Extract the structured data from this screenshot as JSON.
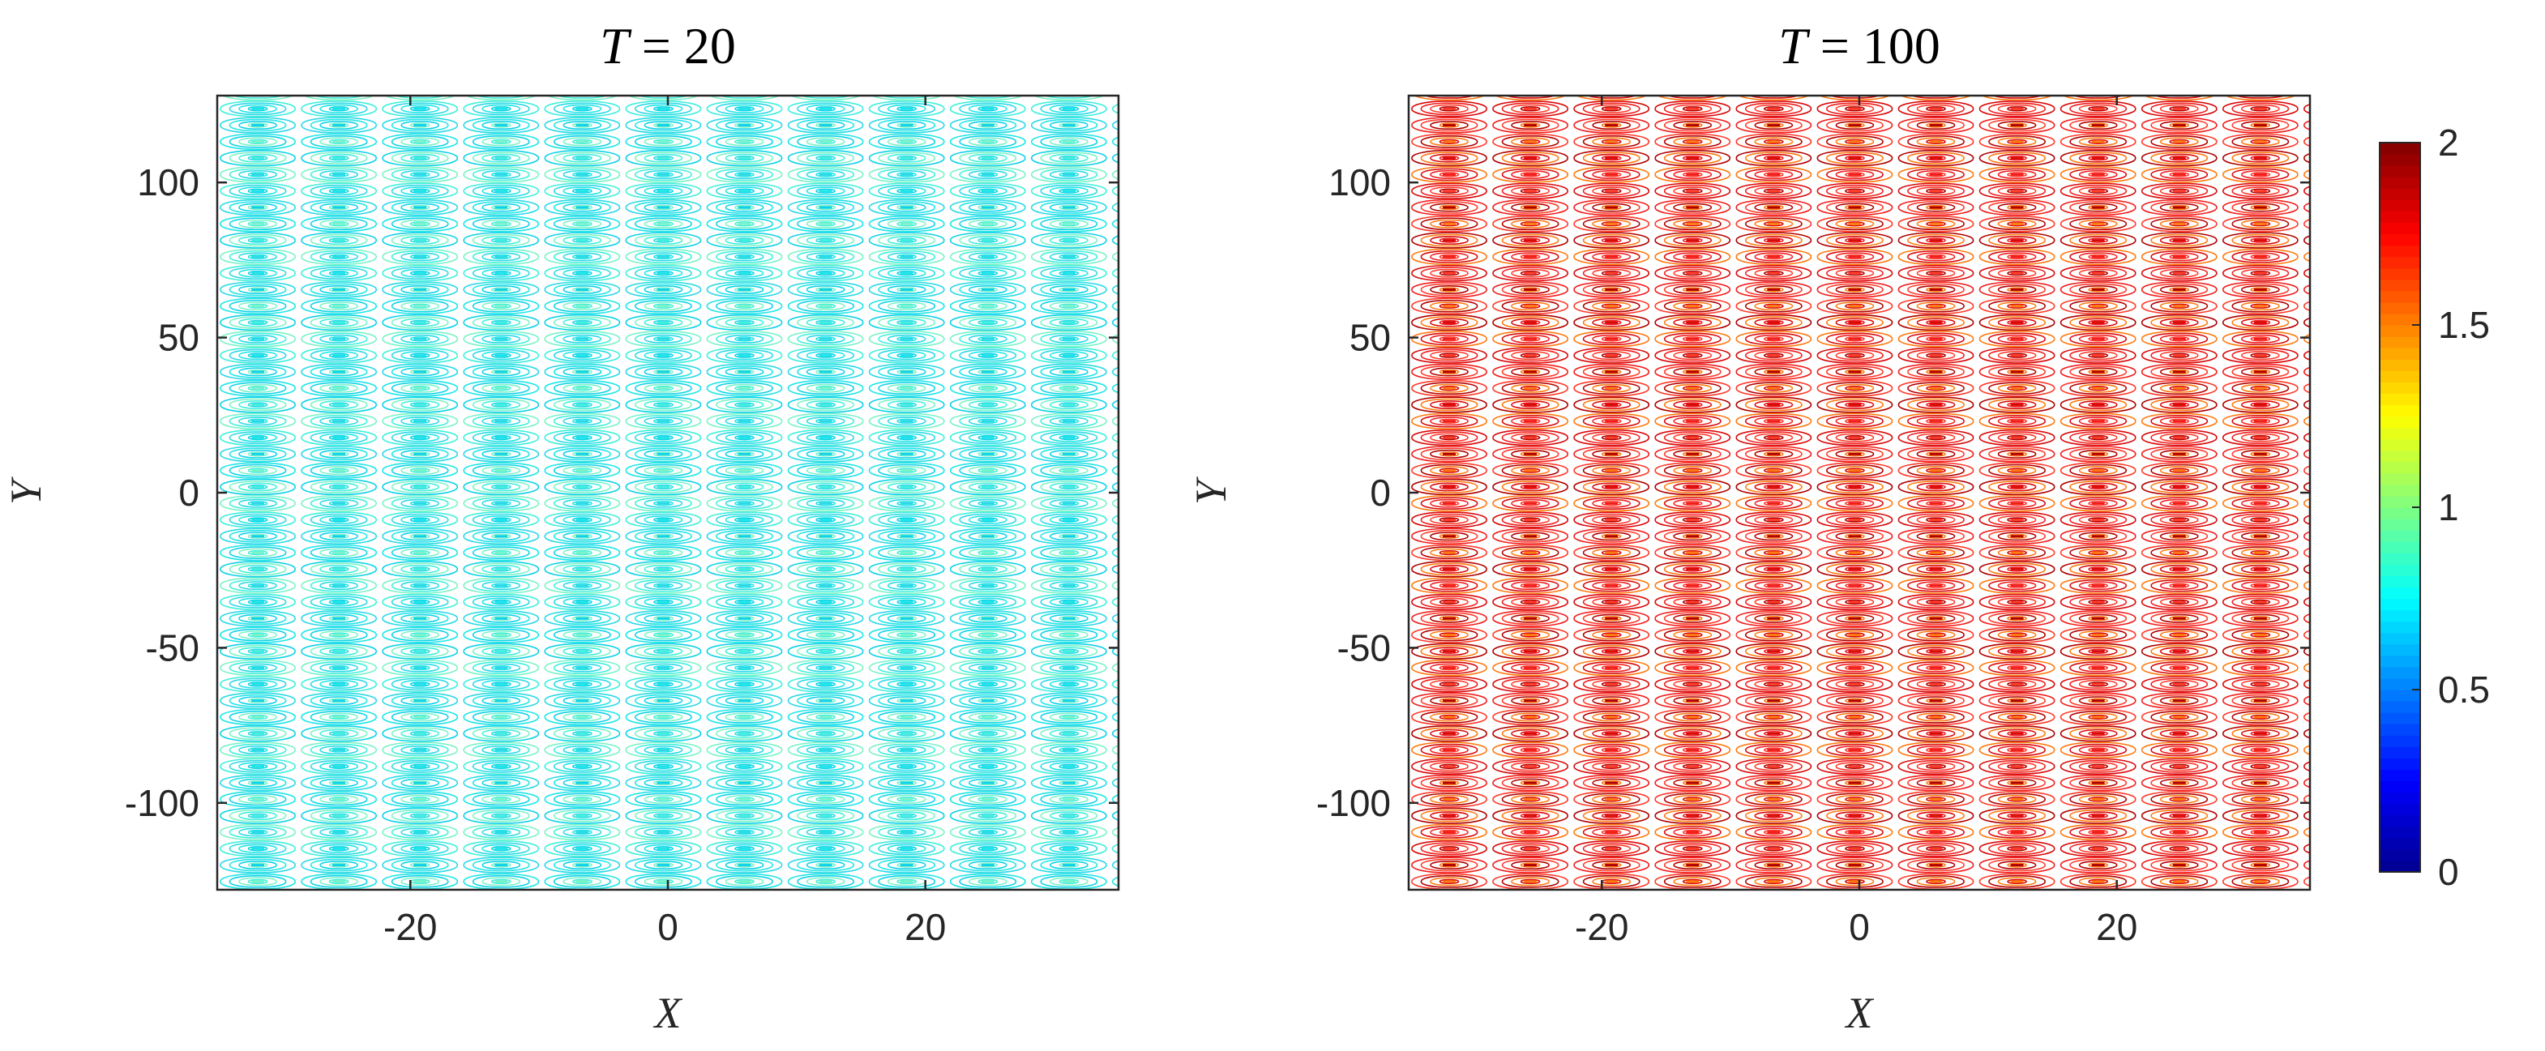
{
  "chart_data": [
    {
      "type": "contour",
      "title_var": "T",
      "title_eq": " = ",
      "title_value": "20",
      "xlabel": "X",
      "ylabel": "Y",
      "xlim": [
        -35,
        35
      ],
      "ylim": [
        -128,
        128
      ],
      "xticks": [
        -20,
        0,
        20
      ],
      "yticks": [
        -100,
        -50,
        0,
        50,
        100
      ],
      "xtick_labels": [
        "-20",
        "0",
        "20"
      ],
      "ytick_labels": [
        "-100",
        "-50",
        "0",
        "50",
        "100"
      ],
      "cell_period_x": 6.3,
      "cell_period_y": 5.3,
      "amplitude_min": 0.62,
      "amplitude_max": 0.84,
      "contour_colors": [
        "#1fe6e6",
        "#2fd8e6",
        "#3ff0dc",
        "#7cf2c8",
        "#0fd2e8"
      ]
    },
    {
      "type": "contour",
      "title_var": "T",
      "title_eq": " = ",
      "title_value": "100",
      "xlabel": "X",
      "ylabel": "Y",
      "xlim": [
        -35,
        35
      ],
      "ylim": [
        -128,
        128
      ],
      "xticks": [
        -20,
        0,
        20
      ],
      "yticks": [
        -100,
        -50,
        0,
        50,
        100
      ],
      "xtick_labels": [
        "-20",
        "0",
        "20"
      ],
      "ytick_labels": [
        "-100",
        "-50",
        "0",
        "50",
        "100"
      ],
      "cell_period_x": 6.3,
      "cell_period_y": 5.3,
      "amplitude_min": 1.7,
      "amplitude_max": 2.0,
      "contour_colors": [
        "#ff3a2a",
        "#f01e1e",
        "#d80a0a",
        "#ff7a10",
        "#b00000"
      ]
    }
  ],
  "colorbar": {
    "range": [
      0,
      2
    ],
    "ticks": [
      0,
      0.5,
      1,
      1.5,
      2
    ],
    "tick_labels": [
      "0",
      "0.5",
      "1",
      "1.5",
      "2"
    ],
    "colors": [
      "#00008f",
      "#0000ff",
      "#0080ff",
      "#00ffff",
      "#80ff80",
      "#ffff00",
      "#ff8000",
      "#ff0000",
      "#800000"
    ]
  }
}
